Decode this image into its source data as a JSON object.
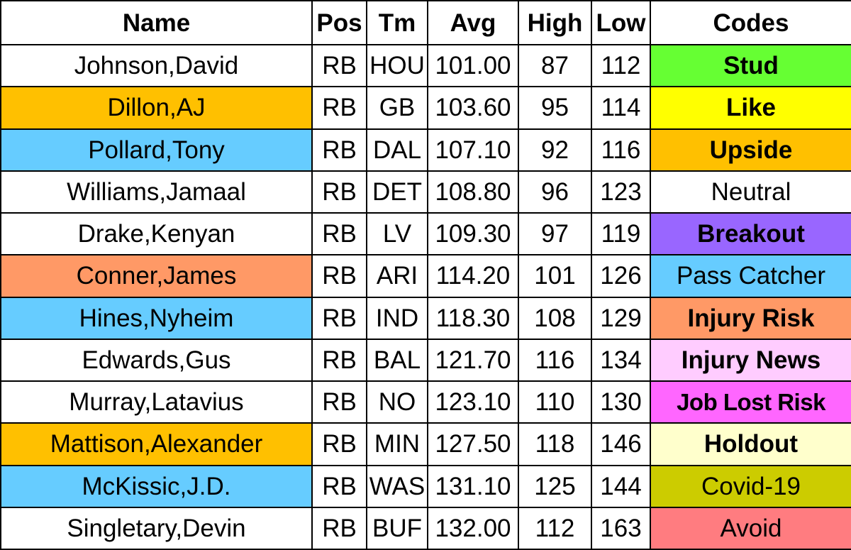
{
  "headers": [
    "Name",
    "Pos",
    "Tm",
    "Avg",
    "High",
    "Low",
    "Codes"
  ],
  "rows": [
    {
      "name": "Johnson,David",
      "name_bg": "#ffffff",
      "pos": "RB",
      "tm": "HOU",
      "avg": "101.00",
      "high": "87",
      "low": "112",
      "code": "Stud",
      "code_bg": "#66ff33",
      "code_bold": true
    },
    {
      "name": "Dillon,AJ",
      "name_bg": "#ffc000",
      "pos": "RB",
      "tm": "GB",
      "avg": "103.60",
      "high": "95",
      "low": "114",
      "code": "Like",
      "code_bg": "#ffff00",
      "code_bold": true
    },
    {
      "name": "Pollard,Tony",
      "name_bg": "#66ccff",
      "pos": "RB",
      "tm": "DAL",
      "avg": "107.10",
      "high": "92",
      "low": "116",
      "code": "Upside",
      "code_bg": "#ffc000",
      "code_bold": true
    },
    {
      "name": "Williams,Jamaal",
      "name_bg": "#ffffff",
      "pos": "RB",
      "tm": "DET",
      "avg": "108.80",
      "high": "96",
      "low": "123",
      "code": "Neutral",
      "code_bg": "#ffffff",
      "code_bold": false
    },
    {
      "name": "Drake,Kenyan",
      "name_bg": "#ffffff",
      "pos": "RB",
      "tm": "LV",
      "avg": "109.30",
      "high": "97",
      "low": "119",
      "code": "Breakout",
      "code_bg": "#9966ff",
      "code_bold": true
    },
    {
      "name": "Conner,James",
      "name_bg": "#ff9966",
      "pos": "RB",
      "tm": "ARI",
      "avg": "114.20",
      "high": "101",
      "low": "126",
      "code": "Pass Catcher",
      "code_bg": "#66ccff",
      "code_bold": false
    },
    {
      "name": "Hines,Nyheim",
      "name_bg": "#66ccff",
      "pos": "RB",
      "tm": "IND",
      "avg": "118.30",
      "high": "108",
      "low": "129",
      "code": "Injury Risk",
      "code_bg": "#ff9966",
      "code_bold": true
    },
    {
      "name": "Edwards,Gus",
      "name_bg": "#ffffff",
      "pos": "RB",
      "tm": "BAL",
      "avg": "121.70",
      "high": "116",
      "low": "134",
      "code": "Injury News",
      "code_bg": "#ffccff",
      "code_bold": true
    },
    {
      "name": "Murray,Latavius",
      "name_bg": "#ffffff",
      "pos": "RB",
      "tm": "NO",
      "avg": "123.10",
      "high": "110",
      "low": "130",
      "code": "Job Lost Risk",
      "code_bg": "#ff66ff",
      "code_bold": true
    },
    {
      "name": "Mattison,Alexander",
      "name_bg": "#ffc000",
      "pos": "RB",
      "tm": "MIN",
      "avg": "127.50",
      "high": "118",
      "low": "146",
      "code": "Holdout",
      "code_bg": "#ffffcc",
      "code_bold": true
    },
    {
      "name": "McKissic,J.D.",
      "name_bg": "#66ccff",
      "pos": "RB",
      "tm": "WAS",
      "avg": "131.10",
      "high": "125",
      "low": "144",
      "code": "Covid-19",
      "code_bg": "#cccc00",
      "code_bold": false
    },
    {
      "name": "Singletary,Devin",
      "name_bg": "#ffffff",
      "pos": "RB",
      "tm": "BUF",
      "avg": "132.00",
      "high": "112",
      "low": "163",
      "code": "Avoid",
      "code_bg": "#ff7c80",
      "code_bold": false
    }
  ]
}
